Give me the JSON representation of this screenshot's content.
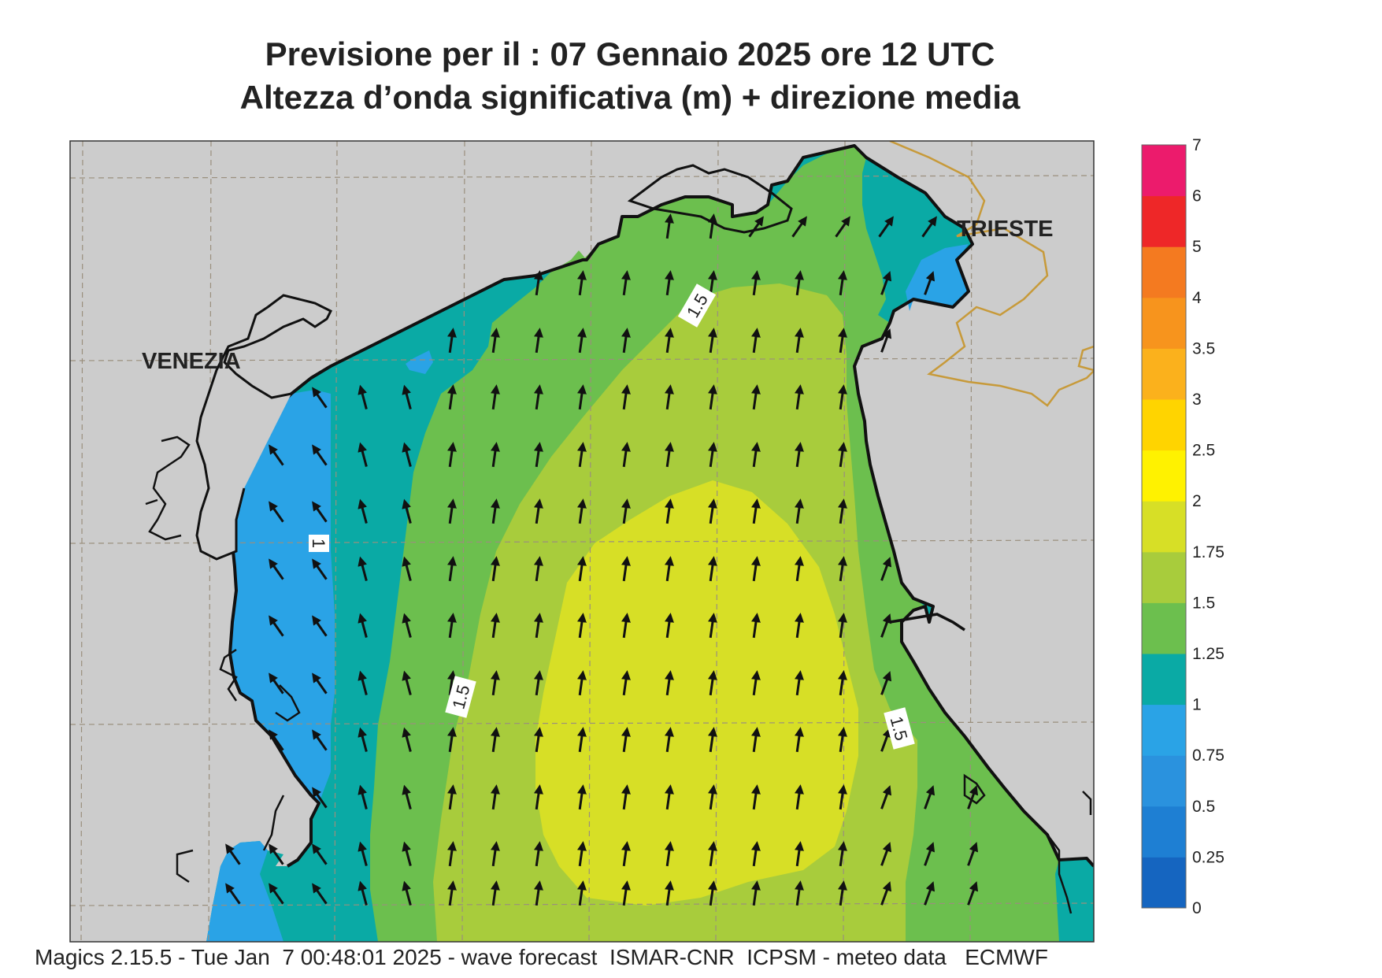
{
  "header": {
    "line1": "Previsione per il  :  07  Gennaio  2025   ore 12 UTC",
    "line2": "Altezza d’onda significativa (m) + direzione media"
  },
  "labels": {
    "venezia": "VENEZIA",
    "trieste": "TRIESTE",
    "contour_1": "1",
    "contour_15_a": "1.5",
    "contour_15_b": "1.5",
    "contour_15_c": "1.5"
  },
  "colorbar": {
    "ticks": [
      "0",
      "0.25",
      "0.5",
      "0.75",
      "1",
      "1.25",
      "1.5",
      "1.75",
      "2",
      "2.5",
      "3",
      "3.5",
      "4",
      "5",
      "6",
      "7"
    ],
    "colors": [
      "#1565c0",
      "#1e7fd3",
      "#2a92de",
      "#2aa3e6",
      "#0aaaa5",
      "#6cbf4e",
      "#a8cc3c",
      "#d7df26",
      "#fff200",
      "#ffd400",
      "#fbb11c",
      "#f7941d",
      "#f47a20",
      "#ee2728",
      "#ec1b6c"
    ]
  },
  "colors": {
    "land": "#cccccc",
    "coast": "#111111",
    "border": "#c79a3a",
    "grid": "#9a8f7d"
  },
  "footer": {
    "text": "Magics 2.15.5 - Tue Jan  7 00:48:01 2025 - wave forecast  ISMAR-CNR  ICPSM - meteo data   ECMWF"
  }
}
